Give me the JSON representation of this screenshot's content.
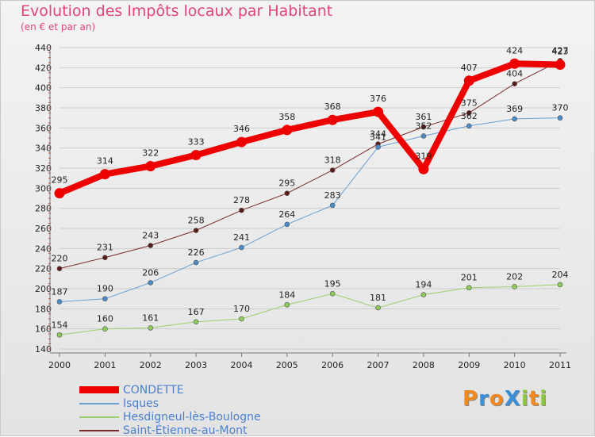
{
  "title": "Evolution des Impôts locaux par Habitant",
  "subtitle": "(en € et par an)",
  "logo": {
    "text": "ProXiti",
    "letters": [
      "P",
      "r",
      "o",
      "X",
      "i",
      "t",
      "i"
    ],
    "colors": [
      "#f08a1f",
      "#3a8fd8",
      "#f08a1f",
      "#3a8fd8",
      "#8cc83c",
      "#f08a1f",
      "#8cc83c"
    ]
  },
  "chart_data": {
    "type": "line",
    "x": [
      2000,
      2001,
      2002,
      2003,
      2004,
      2005,
      2006,
      2007,
      2008,
      2009,
      2010,
      2011
    ],
    "ylim": [
      140,
      440
    ],
    "yticks": [
      140,
      160,
      180,
      200,
      220,
      240,
      260,
      280,
      300,
      320,
      340,
      360,
      380,
      400,
      420,
      440
    ],
    "grid": "horizontal",
    "legend_position": "bottom-left",
    "series": [
      {
        "name": "Saint-Étienne-au-Mont",
        "color": "#7a2a2a",
        "point": "#5c1a1a",
        "width": 1,
        "values": [
          220,
          231,
          243,
          258,
          278,
          295,
          318,
          344,
          361,
          375,
          404,
          427
        ]
      },
      {
        "name": "Hesdigneul-lès-Boulogne",
        "color": "#9ad06a",
        "point": "#8ecb5a",
        "width": 1,
        "values": [
          154,
          160,
          161,
          167,
          170,
          184,
          195,
          181,
          194,
          201,
          202,
          204
        ]
      },
      {
        "name": "Isques",
        "color": "#6a9fd0",
        "point": "#4a8bc8",
        "width": 1,
        "values": [
          187,
          190,
          206,
          226,
          241,
          264,
          283,
          341,
          352,
          362,
          369,
          370
        ]
      },
      {
        "name": "CONDETTE",
        "color": "#ee0000",
        "point": "#ee0000",
        "width": 8,
        "values": [
          295,
          314,
          322,
          333,
          346,
          358,
          368,
          376,
          319,
          407,
          424,
          423
        ]
      }
    ],
    "legend_order": [
      "CONDETTE",
      "Isques",
      "Hesdigneul-lès-Boulogne",
      "Saint-Étienne-au-Mont"
    ]
  }
}
